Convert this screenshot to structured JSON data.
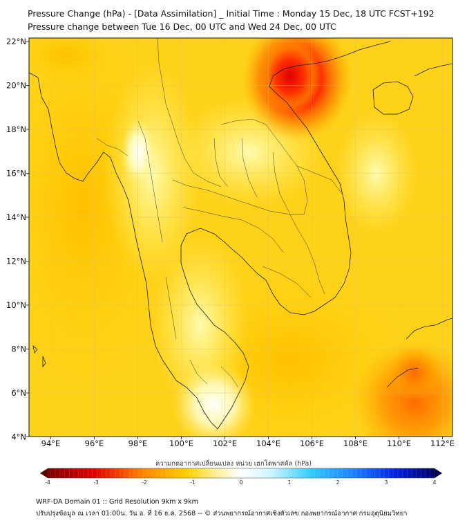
{
  "title": {
    "line1": "Pressure Change (hPa) - [Data Assimilation] _ Initial Time : Monday 15 Dec, 18 UTC FCST+192",
    "line2": "Pressure change between Tue 16 Dec, 00 UTC and Wed 24 Dec, 00 UTC"
  },
  "map": {
    "lat_labels": [
      "22°N",
      "20°N",
      "18°N",
      "16°N",
      "14°N",
      "12°N",
      "10°N",
      "8°N",
      "6°N",
      "4°N"
    ],
    "lon_labels": [
      "94°E",
      "96°E",
      "98°E",
      "100°E",
      "102°E",
      "104°E",
      "106°E",
      "108°E",
      "110°E",
      "112°E"
    ],
    "lat_range": [
      4,
      22
    ],
    "lon_range": [
      93,
      112.5
    ]
  },
  "colorbar": {
    "label": "ความกดอากาศเปลี่ยนแปลง หน่วย เฮกโตพาสคัล (hPa)",
    "ticks": [
      "-4",
      "-3",
      "-2",
      "-1",
      "0",
      "1",
      "2",
      "3",
      "4"
    ],
    "colors": {
      "min": "#7a0000",
      "red": "#e00000",
      "orange": "#ff9900",
      "yellow": "#ffe100",
      "zero": "#ffffff",
      "cyan": "#33ccff",
      "blue": "#0033ff",
      "max": "#000066"
    }
  },
  "footer": {
    "line1": "WRF-DA Domain 01 :: Grid Resolution 9km x 9km",
    "line2": "ปรับปรุงข้อมูล ณ เวลา 01:00น. วัน อ. ที่ 16 ธ.ค. 2568 -- © ส่วนพยากรณ์อากาศเชิงตัวเลข กองพยากรณ์อากาศ กรมอุตุนิยมวิทยา"
  }
}
